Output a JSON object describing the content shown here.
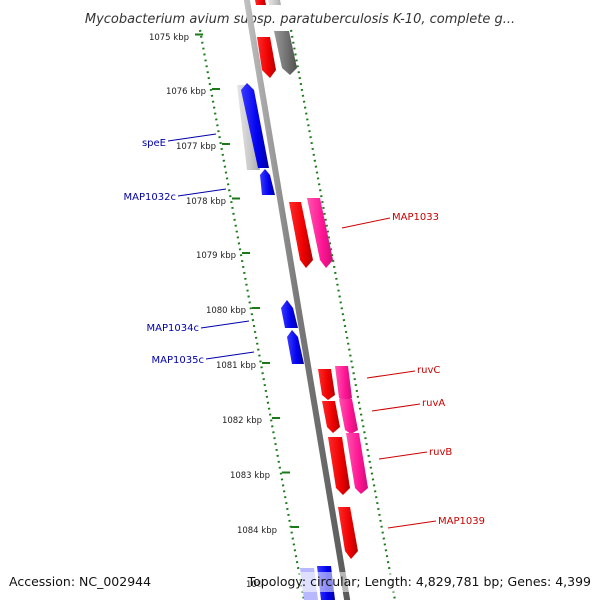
{
  "title": "Mycobacterium avium subsp. paratuberculosis K-10, complete g...",
  "accession": "Accession: NC_002944",
  "topology": "Topology: circular; Length: 4,829,781 bp; Genes: 4,399",
  "colors": {
    "forward_gene": "#ff0000",
    "forward_cds": "#ff1493",
    "reverse_gene": "#0000ff",
    "reverse_other": "#c8c8c8",
    "forward_other": "#707070",
    "backbone": "#808080",
    "ruler": "#1a7a1a",
    "forward_label": "#cc0000",
    "reverse_label": "#0000aa"
  },
  "ruler": {
    "ticks": [
      "1075 kbp",
      "1076 kbp",
      "1077 kbp",
      "1078 kbp",
      "1079 kbp",
      "1080 kbp",
      "1081 kbp",
      "1082 kbp",
      "1083 kbp",
      "1084 kbp",
      "108"
    ]
  },
  "features": {
    "forward": [
      "MAP1033",
      "ruvC",
      "ruvA",
      "ruvB",
      "MAP1039"
    ],
    "reverse": [
      "speE",
      "MAP1032c",
      "MAP1034c",
      "MAP1035c"
    ]
  }
}
